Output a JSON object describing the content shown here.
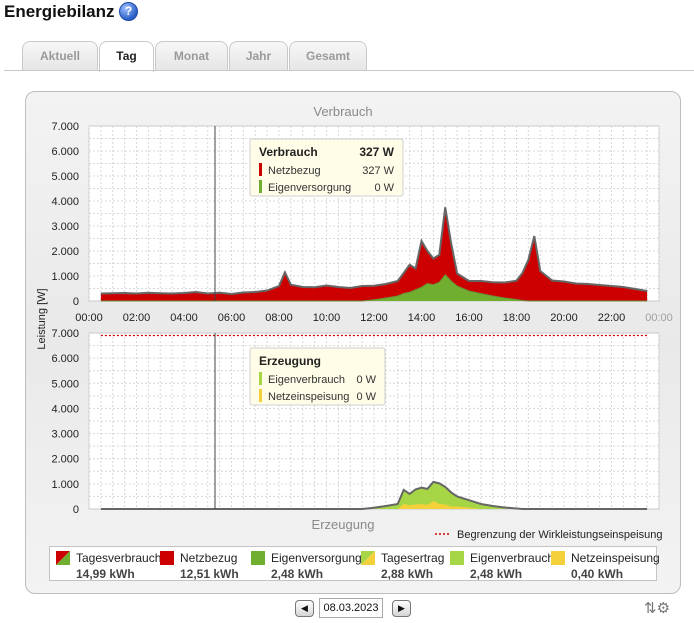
{
  "header": {
    "title": "Energiebilanz",
    "help_icon": "help-icon"
  },
  "tabs": [
    {
      "label": "Aktuell",
      "active": false
    },
    {
      "label": "Tag",
      "active": true
    },
    {
      "label": "Monat",
      "active": false
    },
    {
      "label": "Jahr",
      "active": false
    },
    {
      "label": "Gesamt",
      "active": false
    }
  ],
  "colors": {
    "netzbezug": "#cc0000",
    "eigenversorgung": "#6fae2e",
    "eigenverbrauch": "#a6d645",
    "netzeinspeisung": "#f4d13a",
    "line": "#666666"
  },
  "chart_data": [
    {
      "type": "area",
      "title": "Verbrauch",
      "ylabel": "Leistung [W]",
      "xlabel": "",
      "ylim": [
        0,
        7000
      ],
      "yticks": [
        "0",
        "1.000",
        "2.000",
        "3.000",
        "4.000",
        "5.000",
        "6.000",
        "7.000"
      ],
      "xticks": [
        "00:00",
        "02:00",
        "04:00",
        "06:00",
        "08:00",
        "10:00",
        "12:00",
        "14:00",
        "16:00",
        "18:00",
        "20:00",
        "22:00",
        "00:00"
      ],
      "grid": true,
      "x": [
        0.5,
        1,
        1.5,
        2,
        2.5,
        3,
        3.5,
        4,
        4.5,
        5,
        5.5,
        6,
        6.5,
        7,
        7.5,
        8,
        8.25,
        8.5,
        9,
        9.5,
        10,
        10.5,
        11,
        11.5,
        12,
        12.5,
        13,
        13.25,
        13.5,
        13.75,
        14,
        14.25,
        14.5,
        14.75,
        15,
        15.25,
        15.5,
        16,
        16.5,
        17,
        17.5,
        18,
        18.25,
        18.5,
        18.75,
        19,
        19.5,
        20,
        20.5,
        21,
        21.5,
        22,
        22.5,
        23,
        23.5
      ],
      "series": [
        {
          "name": "Netzbezug",
          "values": [
            300,
            310,
            320,
            300,
            330,
            310,
            300,
            320,
            360,
            300,
            330,
            280,
            340,
            360,
            420,
            600,
            1150,
            650,
            560,
            550,
            620,
            560,
            520,
            600,
            560,
            560,
            600,
            820,
            1100,
            850,
            1850,
            1300,
            1050,
            1100,
            2700,
            1500,
            500,
            400,
            500,
            550,
            620,
            750,
            1100,
            1650,
            2600,
            1200,
            820,
            780,
            700,
            680,
            640,
            600,
            560,
            480,
            400
          ]
        },
        {
          "name": "Eigenversorgung",
          "values": [
            0,
            0,
            0,
            0,
            0,
            0,
            0,
            0,
            0,
            0,
            0,
            0,
            0,
            0,
            0,
            0,
            0,
            0,
            0,
            0,
            0,
            0,
            0,
            0,
            50,
            120,
            200,
            300,
            350,
            450,
            550,
            700,
            650,
            750,
            1050,
            800,
            600,
            400,
            300,
            200,
            120,
            60,
            20,
            0,
            0,
            0,
            0,
            0,
            0,
            0,
            0,
            0,
            0,
            0,
            0
          ]
        }
      ]
    },
    {
      "type": "area",
      "title": "Erzeugung",
      "ylabel": "Leistung [W]",
      "xlabel": "",
      "ylim": [
        0,
        7000
      ],
      "yticks": [
        "0",
        "1.000",
        "2.000",
        "3.000",
        "4.000",
        "5.000",
        "6.000",
        "7.000"
      ],
      "grid": true,
      "limit_line": {
        "value": 6900,
        "label": "Begrenzung der Wirkleistungseinspeisung"
      },
      "x": [
        0.5,
        1,
        1.5,
        2,
        2.5,
        3,
        3.5,
        4,
        4.5,
        5,
        5.5,
        6,
        6.5,
        7,
        7.5,
        8,
        8.5,
        9,
        9.5,
        10,
        10.5,
        11,
        11.5,
        12,
        12.5,
        13,
        13.25,
        13.5,
        13.75,
        14,
        14.25,
        14.5,
        14.75,
        15,
        15.25,
        15.5,
        16,
        16.5,
        17,
        17.5,
        18,
        18.25,
        18.5,
        19,
        19.5,
        20,
        20.5,
        21,
        21.5,
        22,
        22.5,
        23,
        23.5
      ],
      "series": [
        {
          "name": "Eigenverbrauch",
          "values": [
            0,
            0,
            0,
            0,
            0,
            0,
            0,
            0,
            0,
            0,
            0,
            0,
            0,
            0,
            0,
            0,
            0,
            0,
            0,
            0,
            0,
            0,
            0,
            50,
            120,
            200,
            560,
            450,
            600,
            650,
            640,
            760,
            820,
            700,
            560,
            400,
            300,
            200,
            120,
            60,
            20,
            0,
            0,
            0,
            0,
            0,
            0,
            0,
            0,
            0,
            0,
            0,
            0
          ]
        },
        {
          "name": "Netzeinspeisung",
          "values": [
            0,
            0,
            0,
            0,
            0,
            0,
            0,
            0,
            0,
            0,
            0,
            0,
            0,
            0,
            0,
            0,
            0,
            0,
            0,
            0,
            0,
            0,
            0,
            0,
            0,
            0,
            200,
            150,
            180,
            200,
            160,
            320,
            200,
            180,
            100,
            100,
            50,
            0,
            0,
            0,
            0,
            0,
            0,
            0,
            0,
            0,
            0,
            0,
            0,
            0,
            0,
            0,
            0
          ]
        }
      ]
    }
  ],
  "tooltip_top": {
    "title": "Verbrauch",
    "title_value": "327 W",
    "rows": [
      {
        "label": "Netzbezug",
        "value": "327 W"
      },
      {
        "label": "Eigenversorgung",
        "value": "0 W"
      }
    ]
  },
  "tooltip_bottom": {
    "title": "Erzeugung",
    "rows": [
      {
        "label": "Eigenverbrauch",
        "value": "0 W"
      },
      {
        "label": "Netzeinspeisung",
        "value": "0 W"
      }
    ]
  },
  "legend": [
    {
      "label": "Tagesverbrauch",
      "value": "14,99 kWh"
    },
    {
      "label": "Netzbezug",
      "value": "12,51 kWh"
    },
    {
      "label": "Eigenversorgung",
      "value": "2,48 kWh"
    },
    {
      "label": "Tagesertrag",
      "value": "2,88 kWh"
    },
    {
      "label": "Eigenverbrauch",
      "value": "2,48 kWh"
    },
    {
      "label": "Netzeinspeisung",
      "value": "0,40 kWh"
    }
  ],
  "date_nav": {
    "date": "08.03.2023",
    "prev_icon": "chevron-left-icon",
    "next_icon": "chevron-right-icon"
  }
}
